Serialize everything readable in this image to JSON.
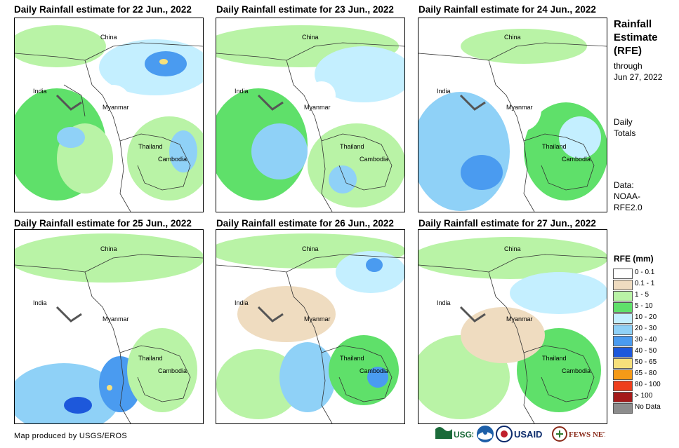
{
  "panels": [
    {
      "title": "Daily Rainfall estimate for 22 Jun., 2022",
      "labels": {
        "china": "China",
        "india": "India",
        "myanmar": "Myanmar",
        "thailand": "Thailand",
        "cambodia": "Cambodia"
      }
    },
    {
      "title": "Daily Rainfall estimate for 23 Jun., 2022",
      "labels": {
        "china": "China",
        "india": "India",
        "myanmar": "Myanmar",
        "thailand": "Thailand",
        "cambodia": "Cambodia"
      }
    },
    {
      "title": "Daily Rainfall estimate for 24 Jun., 2022",
      "labels": {
        "china": "China",
        "india": "India",
        "myanmar": "Myanmar",
        "thailand": "Thailand",
        "cambodia": "Cambodia"
      }
    },
    {
      "title": "Daily Rainfall estimate for 25 Jun., 2022",
      "labels": {
        "china": "China",
        "india": "India",
        "myanmar": "Myanmar",
        "thailand": "Thailand",
        "cambodia": "Cambodia"
      }
    },
    {
      "title": "Daily Rainfall estimate for 26 Jun., 2022",
      "labels": {
        "china": "China",
        "india": "India",
        "myanmar": "Myanmar",
        "thailand": "Thailand",
        "cambodia": "Cambodia"
      }
    },
    {
      "title": "Daily Rainfall estimate for 27 Jun., 2022",
      "labels": {
        "china": "China",
        "india": "India",
        "myanmar": "Myanmar",
        "thailand": "Thailand",
        "cambodia": "Cambodia"
      }
    }
  ],
  "sidebar": {
    "title_line1": "Rainfall",
    "title_line2": "Estimate",
    "title_line3": "(RFE)",
    "through": "through",
    "date": "Jun 27, 2022",
    "daily1": "Daily",
    "daily2": "Totals",
    "data1": "Data:",
    "data2": "NOAA-",
    "data3": "RFE2.0"
  },
  "legend": {
    "title": "RFE (mm)",
    "items": [
      {
        "label": "0 - 0.1",
        "color": "#ffffff"
      },
      {
        "label": "0.1 - 1",
        "color": "#efdcc0"
      },
      {
        "label": "1 - 5",
        "color": "#b9f3a6"
      },
      {
        "label": "5 - 10",
        "color": "#5fe06a"
      },
      {
        "label": "10 - 20",
        "color": "#c4efff"
      },
      {
        "label": "20 - 30",
        "color": "#8fd1f7"
      },
      {
        "label": "30 - 40",
        "color": "#4a9bf0"
      },
      {
        "label": "40 - 50",
        "color": "#1d58db"
      },
      {
        "label": "50 - 65",
        "color": "#f7e07b"
      },
      {
        "label": "65 - 80",
        "color": "#f59a17"
      },
      {
        "label": "80 - 100",
        "color": "#ee3e1c"
      },
      {
        "label": "> 100",
        "color": "#a41a1a"
      },
      {
        "label": "No Data",
        "color": "#8c8c8c"
      }
    ]
  },
  "credit": "Map produced by USGS/EROS",
  "logos": {
    "usgs": "USGS",
    "usaid": "USAID",
    "fewsnet": "FEWS NET"
  }
}
